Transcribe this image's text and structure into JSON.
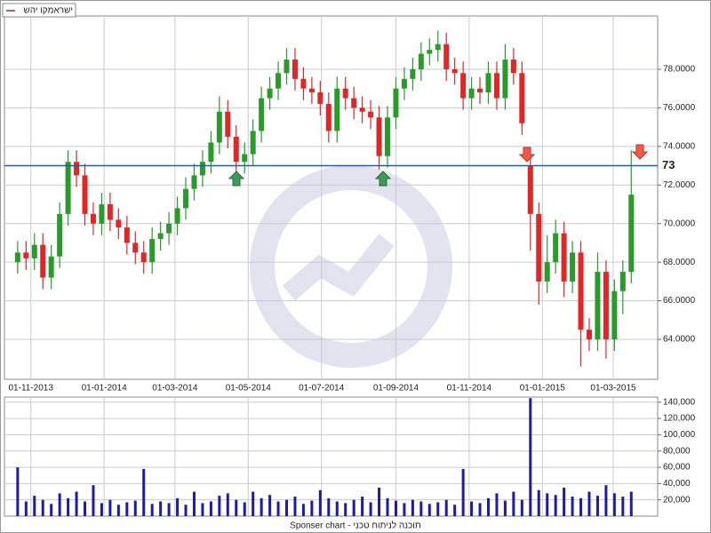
{
  "chart_data": {
    "type": "candlestick",
    "legend": "ישראמקו יהש",
    "footer": "Sponser chart - תוכנה לניתוח טכני",
    "x": [
      "21-10-2013",
      "28-10-2013",
      "04-11-2013",
      "11-11-2013",
      "18-11-2013",
      "25-11-2013",
      "02-12-2013",
      "09-12-2013",
      "16-12-2013",
      "23-12-2013",
      "30-12-2013",
      "06-01-2014",
      "13-01-2014",
      "20-01-2014",
      "27-01-2014",
      "03-02-2014",
      "10-02-2014",
      "17-02-2014",
      "24-02-2014",
      "03-03-2014",
      "10-03-2014",
      "17-03-2014",
      "24-03-2014",
      "31-03-2014",
      "07-04-2014",
      "14-04-2014",
      "21-04-2014",
      "28-04-2014",
      "05-05-2014",
      "12-05-2014",
      "19-05-2014",
      "26-05-2014",
      "02-06-2014",
      "09-06-2014",
      "16-06-2014",
      "23-06-2014",
      "30-06-2014",
      "07-07-2014",
      "14-07-2014",
      "21-07-2014",
      "28-07-2014",
      "04-08-2014",
      "11-08-2014",
      "18-08-2014",
      "25-08-2014",
      "01-09-2014",
      "08-09-2014",
      "15-09-2014",
      "22-09-2014",
      "29-09-2014",
      "06-10-2014",
      "13-10-2014",
      "20-10-2014",
      "27-10-2014",
      "03-11-2014",
      "10-11-2014",
      "17-11-2014",
      "24-11-2014",
      "01-12-2014",
      "08-12-2014",
      "15-12-2014",
      "22-12-2014",
      "29-12-2014",
      "05-01-2015",
      "12-01-2015",
      "19-01-2015",
      "26-01-2015",
      "02-02-2015",
      "09-02-2015",
      "16-02-2015",
      "23-02-2015",
      "02-03-2015",
      "09-03-2015",
      "16-03-2015"
    ],
    "open": [
      68.0,
      68.5,
      68.2,
      68.9,
      67.2,
      68.3,
      70.5,
      73.2,
      72.5,
      70.5,
      70.0,
      71.0,
      70.2,
      69.8,
      69.0,
      68.5,
      68.0,
      69.2,
      69.5,
      70.0,
      70.8,
      71.8,
      72.5,
      73.2,
      74.2,
      75.8,
      74.5,
      73.2,
      73.6,
      74.8,
      76.5,
      77.0,
      77.8,
      78.5,
      77.5,
      77.0,
      76.8,
      76.2,
      74.8,
      77.0,
      76.5,
      76.0,
      75.8,
      75.5,
      73.5,
      75.5,
      77.0,
      77.5,
      78.0,
      78.8,
      79.0,
      79.3,
      78.0,
      77.8,
      76.5,
      77.0,
      76.8,
      77.8,
      76.5,
      78.5,
      77.8,
      73.0,
      70.5,
      67.0,
      68.0,
      69.5,
      67.0,
      68.5,
      64.5,
      64.0,
      67.5,
      64.0,
      66.5,
      67.5
    ],
    "high": [
      69.1,
      69.1,
      69.5,
      69.5,
      68.9,
      71.1,
      73.8,
      73.8,
      73.1,
      71.1,
      71.6,
      71.6,
      70.8,
      70.4,
      69.6,
      69.1,
      69.8,
      70.1,
      70.6,
      71.4,
      72.4,
      73.1,
      73.8,
      74.8,
      76.6,
      76.4,
      75.1,
      74.2,
      75.4,
      77.1,
      77.6,
      78.4,
      79.1,
      79.1,
      78.1,
      77.6,
      77.4,
      76.8,
      77.6,
      77.6,
      77.1,
      76.6,
      76.4,
      76.1,
      76.1,
      77.6,
      78.1,
      78.6,
      79.4,
      79.6,
      80.0,
      79.9,
      78.6,
      78.4,
      77.6,
      77.6,
      78.4,
      78.4,
      79.3,
      79.1,
      78.4,
      73.4,
      71.1,
      69.4,
      70.2,
      70.1,
      69.1,
      69.1,
      65.1,
      68.5,
      68.1,
      67.1,
      68.1,
      73.8
    ],
    "low": [
      67.4,
      67.6,
      67.6,
      66.6,
      66.6,
      67.7,
      69.9,
      71.9,
      69.9,
      69.4,
      69.4,
      69.6,
      69.2,
      68.4,
      67.9,
      67.4,
      67.4,
      68.6,
      68.9,
      69.4,
      70.2,
      71.2,
      71.9,
      72.6,
      73.6,
      73.9,
      72.6,
      72.6,
      73.0,
      74.2,
      75.9,
      76.4,
      77.2,
      76.9,
      76.4,
      76.2,
      75.6,
      74.2,
      74.2,
      75.9,
      75.4,
      75.2,
      74.9,
      72.8,
      72.9,
      74.9,
      76.4,
      76.9,
      77.4,
      78.2,
      78.4,
      77.4,
      77.2,
      75.9,
      75.9,
      76.2,
      76.2,
      75.9,
      75.9,
      77.2,
      74.6,
      68.6,
      65.8,
      66.4,
      67.4,
      66.2,
      66.4,
      62.6,
      63.4,
      63.4,
      63.0,
      63.4,
      65.3,
      66.9
    ],
    "close": [
      68.5,
      68.2,
      68.9,
      67.2,
      68.3,
      70.5,
      73.2,
      72.5,
      70.5,
      70.0,
      71.0,
      70.2,
      69.8,
      69.0,
      68.5,
      68.0,
      69.2,
      69.5,
      70.0,
      70.8,
      71.8,
      72.5,
      73.2,
      74.2,
      75.8,
      74.5,
      73.2,
      73.6,
      74.8,
      76.5,
      77.0,
      77.8,
      78.5,
      77.5,
      77.0,
      76.8,
      76.2,
      74.8,
      77.0,
      76.5,
      76.0,
      75.8,
      75.5,
      73.5,
      75.5,
      77.0,
      77.5,
      78.0,
      78.8,
      79.0,
      79.3,
      78.0,
      77.8,
      76.5,
      77.0,
      76.8,
      77.8,
      76.5,
      78.5,
      77.8,
      75.2,
      70.5,
      67.0,
      68.0,
      69.5,
      67.0,
      68.5,
      64.5,
      64.0,
      67.5,
      64.0,
      66.5,
      67.5,
      71.5
    ],
    "volume": [
      60000,
      18000,
      25000,
      20000,
      15000,
      28000,
      22000,
      30000,
      18000,
      38000,
      16000,
      20000,
      14000,
      17000,
      19000,
      58000,
      15000,
      18000,
      16000,
      22000,
      14000,
      30000,
      16000,
      18000,
      25000,
      28000,
      20000,
      17000,
      30000,
      22000,
      26000,
      18000,
      20000,
      24000,
      15000,
      19000,
      32000,
      22000,
      18000,
      16000,
      20000,
      24000,
      17000,
      35000,
      22000,
      19000,
      16000,
      20000,
      18000,
      15000,
      17000,
      20000,
      14000,
      58000,
      18000,
      16000,
      22000,
      28000,
      19000,
      30000,
      20000,
      145000,
      32000,
      28000,
      26000,
      35000,
      24000,
      22000,
      30000,
      25000,
      38000,
      28000,
      24000,
      30000
    ],
    "up_color": "#2a9a2a",
    "down_color": "#e02626",
    "volume_color": "#1c1ca8",
    "reference_line": 73,
    "reference_color": "#1f5fa8",
    "reference_label_color": "#e02626",
    "xlim": [
      "10-10-2013",
      "07-04-2015"
    ],
    "xticks": [
      "01-11-2013",
      "01-01-2014",
      "01-03-2014",
      "01-05-2014",
      "01-07-2014",
      "01-09-2014",
      "01-11-2014",
      "01-01-2015",
      "01-03-2015"
    ],
    "ylim": [
      61.93,
      80.76
    ],
    "yticks": [
      {
        "value": 64,
        "label": "64.0000"
      },
      {
        "value": 66,
        "label": "66.0000"
      },
      {
        "value": 68,
        "label": "68.0000"
      },
      {
        "value": 70,
        "label": "70.0000"
      },
      {
        "value": 72,
        "label": "72.0000"
      },
      {
        "value": 74,
        "label": "74.0000"
      },
      {
        "value": 76,
        "label": "76.0000"
      },
      {
        "value": 78,
        "label": "78.0000"
      }
    ],
    "volume_ylim": [
      0,
      146300
    ],
    "volume_yticks": [
      {
        "value": 20000,
        "label": "20,000"
      },
      {
        "value": 40000,
        "label": "40,000"
      },
      {
        "value": 60000,
        "label": "60,000"
      },
      {
        "value": 80000,
        "label": "80,000"
      },
      {
        "value": 100000,
        "label": "100,000"
      },
      {
        "value": 120000,
        "label": "120,000"
      },
      {
        "value": 140000,
        "label": "140,000"
      }
    ],
    "grid": true
  }
}
